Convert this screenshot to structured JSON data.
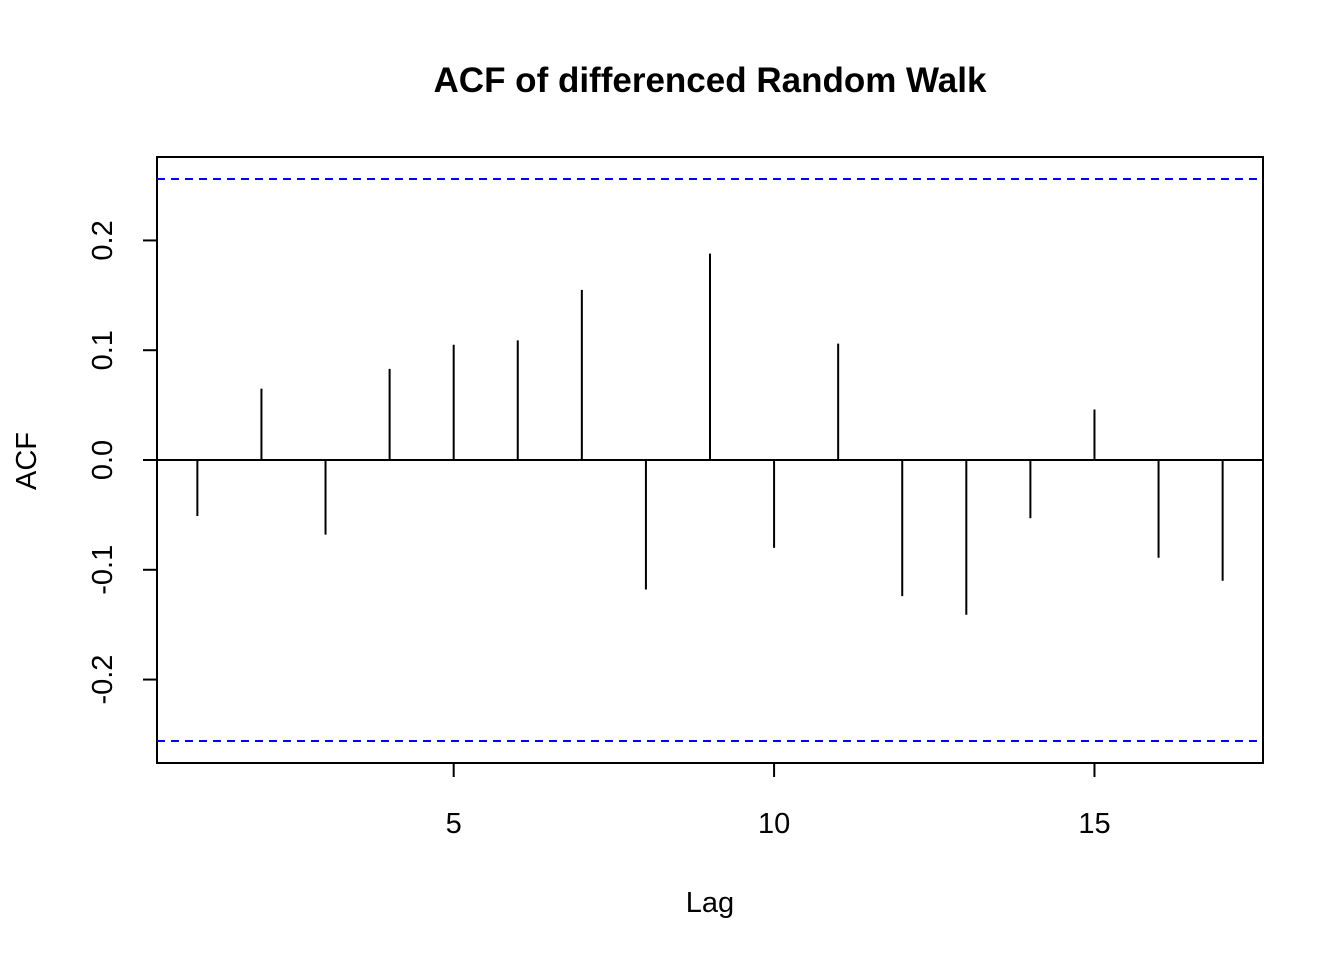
{
  "chart_data": {
    "type": "bar",
    "title": "ACF of differenced Random Walk",
    "xlabel": "Lag",
    "ylabel": "ACF",
    "x": [
      1,
      2,
      3,
      4,
      5,
      6,
      7,
      8,
      9,
      10,
      11,
      12,
      13,
      14,
      15,
      16,
      17
    ],
    "values": [
      -0.051,
      0.065,
      -0.068,
      0.083,
      0.105,
      0.109,
      0.155,
      -0.118,
      0.188,
      -0.08,
      0.106,
      -0.124,
      -0.141,
      -0.053,
      0.046,
      -0.089,
      -0.11
    ],
    "xlim": [
      0.37,
      17.63
    ],
    "ylim": [
      -0.276,
      0.276
    ],
    "xticks": [
      5,
      10,
      15
    ],
    "yticks": [
      -0.2,
      -0.1,
      0.0,
      0.1,
      0.2
    ],
    "ytick_labels": [
      "-0.2",
      "-0.1",
      "0.0",
      "0.1",
      "0.2"
    ],
    "confidence_bounds": [
      0.256,
      -0.256
    ],
    "zero_line": 0,
    "grid": false,
    "colors": {
      "bars": "#000000",
      "confidence": "#0000ff",
      "frame": "#000000"
    }
  }
}
